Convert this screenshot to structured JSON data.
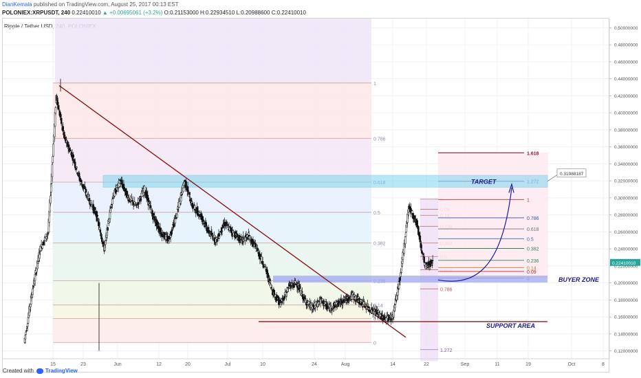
{
  "header": {
    "author": "DianKemala",
    "published": "published on TradingView.com, August 25, 2017 00:13 EST",
    "symbol_line": "POLONIEX:XRPUSDT, 240",
    "last_price": "0.22410010",
    "change": "▲ +0.00695061 (+3.2%)",
    "open": "O:0.21153000",
    "high": "H:0.22934510",
    "low": "L:0.20988600",
    "close": "C:0.22410010"
  },
  "legend_title": "Ripple / Tether USD, 240, POLONIEX",
  "footer": {
    "created_with": "Created with",
    "brand": "TradingView"
  },
  "colors": {
    "up": "#26a69a",
    "down": "#ef5350",
    "candle_body": "#111111",
    "trendline": "#8b1a1a",
    "target_zone": "#7fd6f0",
    "buyer_zone": "#9fa8f0",
    "support": "#8b1a1a",
    "annot_text": "#1a1a8c",
    "arrow": "#1a1aa0"
  },
  "chart_data": {
    "type": "candlestick",
    "ylim": [
      0.11,
      0.51
    ],
    "x_tick_labels": [
      "15",
      "23",
      "Jun",
      "12",
      "20",
      "Jul",
      "10",
      "24",
      "Aug",
      "14",
      "22",
      "Sep",
      "11",
      "19",
      "Oct",
      "8"
    ],
    "y_tick_labels": [
      "0.50000000",
      "0.48000000",
      "0.46000000",
      "0.44000000",
      "0.42000000",
      "0.40000000",
      "0.38000000",
      "0.36000000",
      "0.34000000",
      "0.32000000",
      "0.30000000",
      "0.28000000",
      "0.26000000",
      "0.24000000",
      "0.22000000",
      "0.20000000",
      "0.18000000",
      "0.16000000",
      "0.14000000",
      "0.12000000"
    ],
    "y_ticks": [
      0.5,
      0.48,
      0.46,
      0.44,
      0.42,
      0.4,
      0.38,
      0.36,
      0.34,
      0.32,
      0.3,
      0.28,
      0.26,
      0.24,
      0.22,
      0.2,
      0.18,
      0.16,
      0.14,
      0.12
    ],
    "last_price_label": "0.22410010",
    "price_path": [
      0.13,
      0.19,
      0.24,
      0.26,
      0.42,
      0.37,
      0.35,
      0.32,
      0.3,
      0.28,
      0.24,
      0.3,
      0.32,
      0.3,
      0.29,
      0.31,
      0.28,
      0.26,
      0.25,
      0.28,
      0.32,
      0.29,
      0.28,
      0.26,
      0.25,
      0.27,
      0.26,
      0.25,
      0.255,
      0.24,
      0.22,
      0.19,
      0.175,
      0.195,
      0.2,
      0.18,
      0.17,
      0.18,
      0.17,
      0.175,
      0.18,
      0.185,
      0.178,
      0.17,
      0.165,
      0.158,
      0.16,
      0.21,
      0.29,
      0.27,
      0.22,
      0.224
    ],
    "fib_retracement_main": {
      "levels": [
        {
          "label": "1",
          "value": 0.435
        },
        {
          "label": "0.786",
          "value": 0.37
        },
        {
          "label": "0.618",
          "value": 0.3185
        },
        {
          "label": "0.5",
          "value": 0.283
        },
        {
          "label": "0.382",
          "value": 0.247
        },
        {
          "label": "0.236",
          "value": 0.2025
        },
        {
          "label": "0.14",
          "value": 0.174
        },
        {
          "label": "0.09",
          "value": 0.158
        },
        {
          "label": "0",
          "value": 0.13
        }
      ]
    },
    "fib_retracement_recent": {
      "levels": [
        {
          "label": "0",
          "value": 0.2985
        },
        {
          "label": "0.09",
          "value": 0.2865
        },
        {
          "label": "0.14",
          "value": 0.2795
        },
        {
          "label": "0.236",
          "value": 0.2665
        },
        {
          "label": "0.382",
          "value": 0.247
        },
        {
          "label": "0.5",
          "value": 0.231
        },
        {
          "label": "0.618",
          "value": 0.2155
        },
        {
          "label": "0.786",
          "value": 0.193
        }
      ]
    },
    "fib_extension": {
      "levels": [
        {
          "label": "1.618",
          "value": 0.353
        },
        {
          "label": "1.272",
          "value": 0.3195
        },
        {
          "label": "1",
          "value": 0.298
        },
        {
          "label": "0.786",
          "value": 0.2765
        },
        {
          "label": "0.618",
          "value": 0.2635
        },
        {
          "label": "0.5",
          "value": 0.252
        },
        {
          "label": "0.382",
          "value": 0.2405
        },
        {
          "label": "0.236",
          "value": 0.2265
        },
        {
          "label": "0.14",
          "value": 0.218
        },
        {
          "label": "0.09",
          "value": 0.2135
        },
        {
          "label": "0",
          "value": 0.2055
        },
        {
          "label": "1.272",
          "value": 0.1215
        }
      ]
    },
    "annotations": {
      "target": "TARGET",
      "target_price": "0.31988187",
      "buyer_zone": "BUYER ZONE",
      "support_area": "SUPPORT AREA"
    }
  }
}
